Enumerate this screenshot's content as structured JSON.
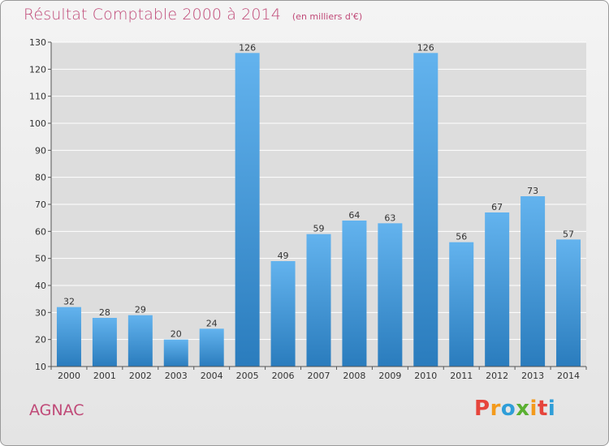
{
  "title": "Résultat Comptable 2000 à 2014",
  "unit_note": "(en milliers d'€)",
  "commune": "AGNAC",
  "brand": {
    "letters": [
      "P",
      "r",
      "o",
      "x",
      "i",
      "t",
      "i"
    ],
    "colors": [
      "#e6453c",
      "#f39a1c",
      "#2f9ed8",
      "#5ab031",
      "#f39a1c",
      "#e6453c",
      "#2f9ed8"
    ]
  },
  "chart_data": {
    "type": "bar",
    "title": "Résultat Comptable 2000 à 2014",
    "ylabel": "en milliers d'€",
    "categories": [
      "2000",
      "2001",
      "2002",
      "2003",
      "2004",
      "2005",
      "2006",
      "2007",
      "2008",
      "2009",
      "2010",
      "2011",
      "2012",
      "2013",
      "2014"
    ],
    "values": [
      32,
      28,
      29,
      20,
      24,
      126,
      49,
      59,
      64,
      63,
      126,
      56,
      67,
      73,
      57
    ],
    "ylim": [
      10,
      130
    ],
    "yticks": [
      10,
      20,
      30,
      40,
      50,
      60,
      70,
      80,
      90,
      100,
      110,
      120,
      130
    ],
    "grid": true,
    "colors": {
      "bar_light": "#63b3ee",
      "bar_dark": "#2a7cbd",
      "grid": "#ffffff",
      "plot_bg": "#dddddd"
    }
  }
}
